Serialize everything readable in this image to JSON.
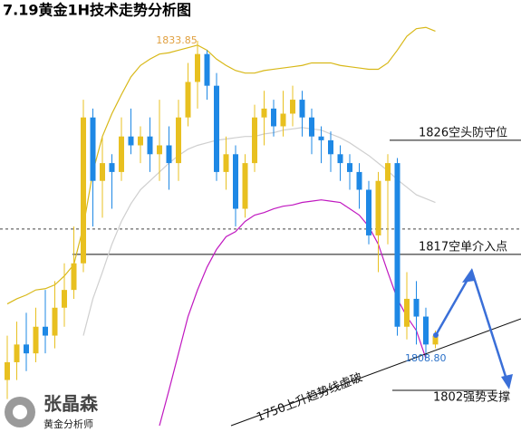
{
  "chart_data": {
    "type": "candlestick",
    "title": "7.19黄金1H技术走势分析图",
    "ylim": [
      1803,
      1837.06
    ],
    "up_color": "#e8c020",
    "down_color": "#1e88e5",
    "candles": {
      "open": [
        1807.1,
        1808.5,
        1809.9,
        1809.2,
        1811.3,
        1810.6,
        1812.8,
        1814.2,
        1816.3,
        1827.8,
        1822.8,
        1824.2,
        1823.5,
        1826.3,
        1825.6,
        1826.3,
        1824.9,
        1825.6,
        1824.2,
        1827.8,
        1830.6,
        1832.8,
        1830.3,
        1823.5,
        1824.9,
        1820.6,
        1824.2,
        1827.8,
        1828.5,
        1827.1,
        1828.1,
        1829.2,
        1827.8,
        1826.3,
        1826.0,
        1824.9,
        1824.2,
        1823.5,
        1822.1,
        1818.5,
        1822.8,
        1824.2,
        1811.3,
        1813.5,
        1812.1,
        1809.9
      ],
      "high": [
        1810.6,
        1811.7,
        1812.4,
        1812.8,
        1814.2,
        1814.9,
        1816.3,
        1819.2,
        1829.2,
        1828.5,
        1826.3,
        1824.9,
        1827.8,
        1828.5,
        1827.1,
        1827.8,
        1829.2,
        1827.1,
        1829.2,
        1832.1,
        1833.85,
        1833.1,
        1831.3,
        1826.3,
        1825.6,
        1824.9,
        1828.8,
        1829.9,
        1829.2,
        1829.9,
        1830.3,
        1829.9,
        1828.5,
        1827.1,
        1826.7,
        1825.6,
        1824.9,
        1824.2,
        1822.8,
        1823.5,
        1824.9,
        1824.6,
        1815.6,
        1814.9,
        1812.8,
        1811.0
      ],
      "low": [
        1805.6,
        1807.1,
        1807.8,
        1808.5,
        1809.2,
        1809.6,
        1811.3,
        1813.5,
        1815.6,
        1819.2,
        1819.9,
        1820.6,
        1822.8,
        1824.9,
        1824.2,
        1823.5,
        1822.8,
        1822.1,
        1822.8,
        1827.1,
        1828.5,
        1829.2,
        1822.8,
        1822.1,
        1819.2,
        1819.9,
        1823.5,
        1825.6,
        1826.3,
        1826.3,
        1827.1,
        1826.3,
        1824.9,
        1824.2,
        1823.5,
        1822.8,
        1822.1,
        1820.6,
        1817.8,
        1815.6,
        1817.8,
        1810.6,
        1810.3,
        1809.9,
        1808.8,
        1809.6
      ],
      "close": [
        1808.5,
        1809.9,
        1809.2,
        1811.3,
        1810.6,
        1812.8,
        1814.2,
        1816.3,
        1827.8,
        1822.8,
        1824.2,
        1823.5,
        1826.3,
        1825.6,
        1826.3,
        1824.9,
        1825.6,
        1824.2,
        1827.8,
        1830.6,
        1832.8,
        1830.3,
        1823.5,
        1824.9,
        1820.6,
        1824.2,
        1827.8,
        1828.5,
        1827.1,
        1828.1,
        1829.2,
        1827.8,
        1826.3,
        1826.0,
        1824.9,
        1824.2,
        1823.5,
        1822.1,
        1818.5,
        1822.8,
        1824.2,
        1811.3,
        1813.5,
        1812.1,
        1809.9,
        1810.6
      ]
    },
    "series": [
      {
        "color": "#d8b818",
        "values": [
          1813.1,
          1813.5,
          1813.8,
          1814.2,
          1814.3,
          1814.6,
          1815.3,
          1816.2,
          1819.2,
          1823.5,
          1826.3,
          1828.1,
          1829.6,
          1831.0,
          1831.9,
          1832.4,
          1832.8,
          1832.9,
          1833.1,
          1833.3,
          1833.5,
          1833.1,
          1832.4,
          1831.9,
          1831.5,
          1831.3,
          1831.3,
          1831.5,
          1831.6,
          1831.7,
          1831.8,
          1831.9,
          1832.1,
          1832.1,
          1832.1,
          1831.9,
          1831.8,
          1831.7,
          1831.6,
          1831.6,
          1832.1,
          1833.1,
          1834.2,
          1834.8,
          1834.9,
          1834.6
        ]
      },
      {
        "color": "#cfcfcf",
        "values": [
          null,
          null,
          null,
          null,
          null,
          null,
          null,
          null,
          1810.6,
          1813.5,
          1815.6,
          1817.8,
          1819.6,
          1821.0,
          1822.1,
          1822.8,
          1823.5,
          1824.2,
          1824.8,
          1825.3,
          1825.6,
          1825.8,
          1826.0,
          1826.1,
          1826.2,
          1826.3,
          1826.3,
          1826.5,
          1826.6,
          1826.8,
          1826.9,
          1827.0,
          1826.9,
          1826.8,
          1826.5,
          1826.2,
          1825.8,
          1825.3,
          1824.8,
          1824.2,
          1823.6,
          1822.9,
          1822.3,
          1821.7,
          1821.4,
          1821.1
        ]
      },
      {
        "color": "#c018c0",
        "values": [
          null,
          null,
          null,
          null,
          null,
          null,
          null,
          null,
          null,
          null,
          null,
          null,
          null,
          null,
          null,
          null,
          1803.5,
          1806.3,
          1809.2,
          1812.1,
          1814.2,
          1816.0,
          1817.4,
          1818.4,
          1818.8,
          1819.6,
          1820.1,
          1820.3,
          1820.6,
          1820.8,
          1820.9,
          1821.1,
          1821.2,
          1821.3,
          1821.2,
          1821.1,
          1820.6,
          1820.1,
          1819.2,
          1817.8,
          1815.6,
          1813.5,
          1812.1,
          1811.0,
          1808.8,
          null
        ]
      }
    ],
    "levels": [
      {
        "value": 1826,
        "label": "1826空头防守位"
      },
      {
        "value": 1817,
        "label": "1817空单介入点"
      }
    ],
    "dashed_level": 1819,
    "annotations": {
      "high_label": "1833.85",
      "low_label": "1808.80",
      "trendline_label": "1750上升趋势线虚破",
      "support_label": "1802强势支撑"
    },
    "logo": {
      "name": "张晶森",
      "subtitle": "黄金分析师"
    }
  }
}
